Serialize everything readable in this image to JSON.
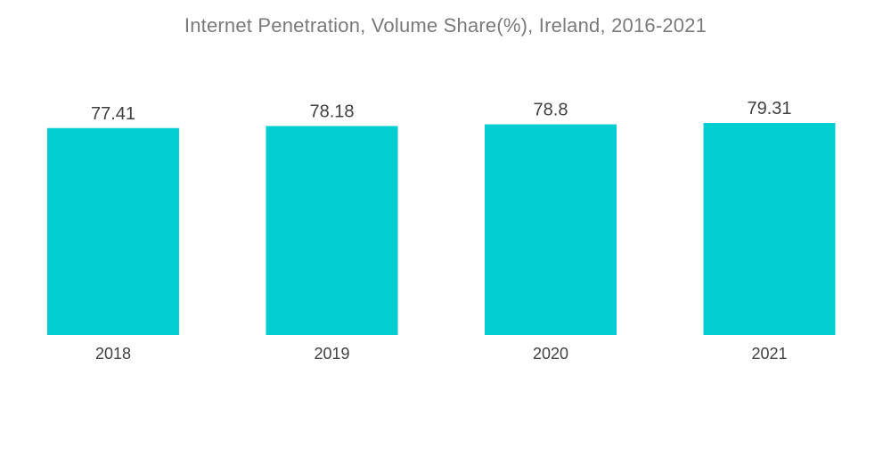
{
  "chart_data": {
    "type": "bar",
    "title": "Internet Penetration, Volume Share(%), Ireland, 2016-2021",
    "categories": [
      "2018",
      "2019",
      "2020",
      "2021"
    ],
    "values": [
      77.41,
      78.18,
      78.8,
      79.31
    ],
    "value_labels": [
      "77.41",
      "78.18",
      "78.8",
      "79.31"
    ],
    "xlabel": "",
    "ylabel": "",
    "ylim": [
      0,
      100
    ],
    "grid": false,
    "legend": "none",
    "bar_color": "#00ced1"
  }
}
